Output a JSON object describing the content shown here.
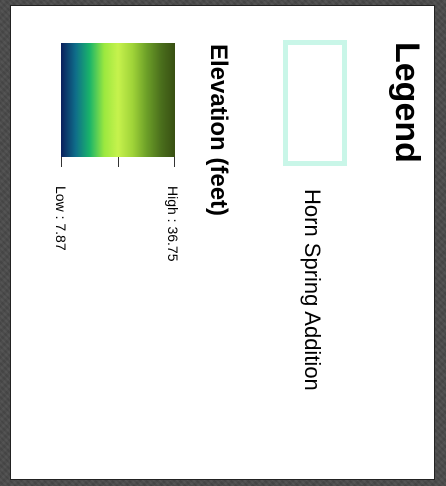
{
  "legend": {
    "title": "Legend",
    "layers": [
      {
        "label": "Horn Spring Addition",
        "outline_color": "#c9f6e8",
        "fill": "none"
      }
    ],
    "elevation": {
      "title": "Elevation (feet)",
      "high_label": "High : 36.75",
      "low_label": "Low : 7.87",
      "ramp_colors": [
        "#0a1f5c",
        "#0f6e8a",
        "#19b36a",
        "#9be83f",
        "#c6f24d",
        "#9fd338",
        "#6da028",
        "#4a6e1c",
        "#384f12"
      ]
    }
  }
}
